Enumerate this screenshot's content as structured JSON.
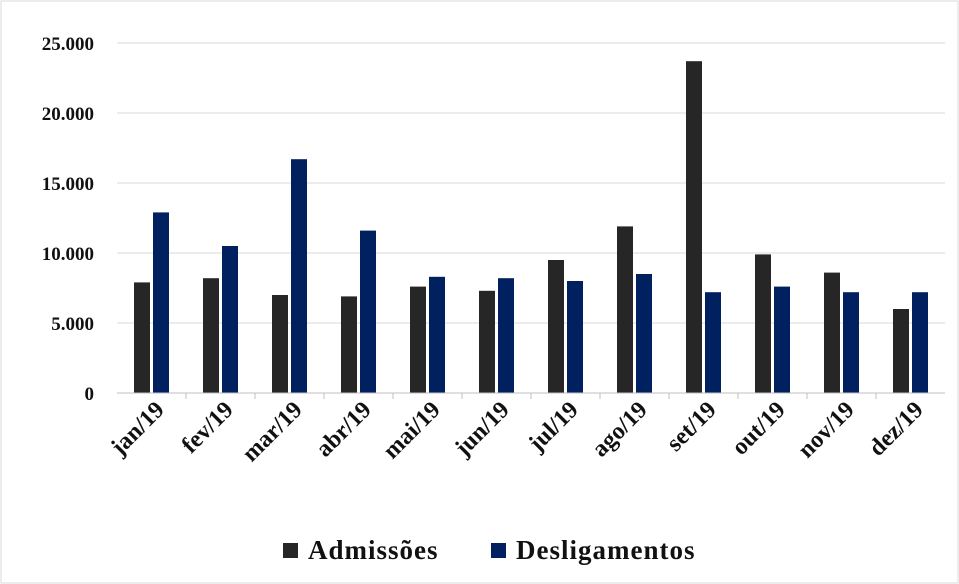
{
  "chart_data": {
    "type": "bar",
    "title": "",
    "xlabel": "",
    "ylabel": "",
    "categories": [
      "jan/19",
      "fev/19",
      "mar/19",
      "abr/19",
      "mai/19",
      "jun/19",
      "jul/19",
      "ago/19",
      "set/19",
      "out/19",
      "nov/19",
      "dez/19"
    ],
    "series": [
      {
        "name": "Admissões",
        "color": "#262626",
        "values": [
          7900,
          8200,
          7000,
          6900,
          7600,
          7300,
          9500,
          11900,
          23700,
          9900,
          8600,
          6000
        ]
      },
      {
        "name": "Desligamentos",
        "color": "#002060",
        "values": [
          12900,
          10500,
          16700,
          11600,
          8300,
          8200,
          8000,
          8500,
          7200,
          7600,
          7200,
          7200
        ]
      }
    ],
    "ylim": [
      0,
      25000
    ],
    "yticks": [
      0,
      5000,
      10000,
      15000,
      20000,
      25000
    ],
    "ytick_labels": [
      "0",
      "5.000",
      "10.000",
      "15.000",
      "20.000",
      "25.000"
    ],
    "grid": true,
    "legend_position": "bottom"
  }
}
